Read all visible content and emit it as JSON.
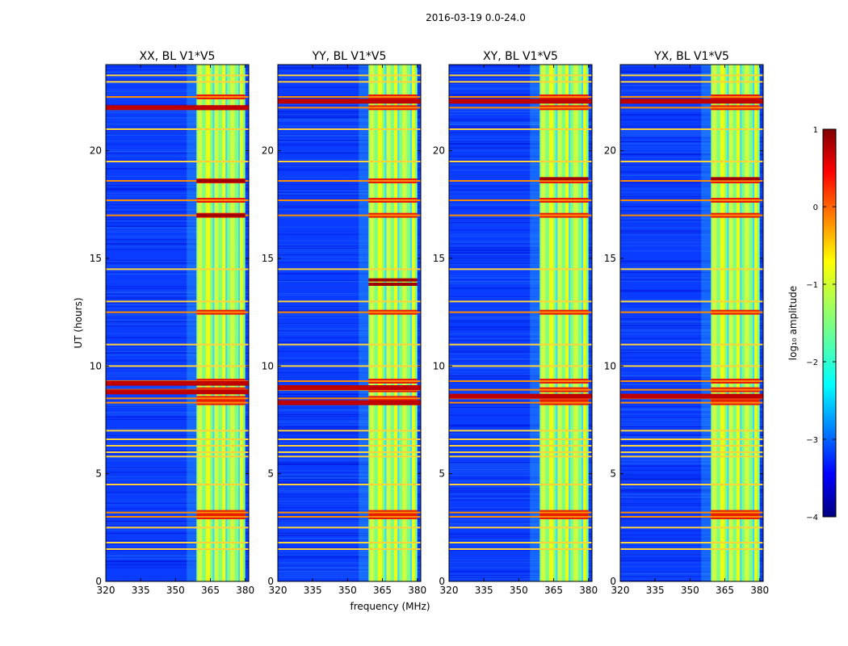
{
  "chart_data": {
    "type": "heatmap",
    "title": "2016-03-19 0.0-24.0",
    "xlabel": "frequency (MHz)",
    "ylabel": "UT (hours)",
    "xlim": [
      320,
      381.5
    ],
    "ylim": [
      0,
      24
    ],
    "xticks": [
      320,
      335,
      350,
      365,
      380
    ],
    "xtick_labels": [
      "320",
      "335",
      "350",
      "365",
      "380"
    ],
    "yticks": [
      0,
      5,
      10,
      15,
      20
    ],
    "ytick_labels": [
      "0",
      "5",
      "10",
      "15",
      "20"
    ],
    "panels": [
      {
        "title": "XX, BL V1*V5",
        "occupied_band_mhz": [
          359,
          380
        ],
        "wide_strong_hours": [
          22.0,
          8.8,
          9.2
        ],
        "extra_strong_hours": [
          18.6,
          17.0
        ]
      },
      {
        "title": "YY, BL V1*V5",
        "occupied_band_mhz": [
          359,
          380
        ],
        "wide_strong_hours": [
          22.3,
          8.3,
          9.0
        ],
        "extra_strong_hours": [
          14.0,
          13.8
        ]
      },
      {
        "title": "XY, BL V1*V5",
        "occupied_band_mhz": [
          359,
          380
        ],
        "wide_strong_hours": [
          22.3,
          8.6
        ],
        "extra_strong_hours": [
          18.7
        ]
      },
      {
        "title": "YX, BL V1*V5",
        "occupied_band_mhz": [
          359,
          380
        ],
        "wide_strong_hours": [
          22.3,
          8.6
        ],
        "extra_strong_hours": [
          18.7
        ]
      }
    ],
    "strong_rfi_hours": [
      22.5,
      22.0,
      18.6,
      17.7,
      17.0,
      12.5,
      9.3,
      8.9,
      8.5,
      8.3,
      3.2,
      3.0
    ],
    "moderate_rfi_hours": [
      23.5,
      23.2,
      21.0,
      19.5,
      14.5,
      13.0,
      11.0,
      10.0,
      7.0,
      6.6,
      6.3,
      6.0,
      5.8,
      4.5,
      2.5,
      1.8,
      1.5
    ],
    "colorbar": {
      "label": "log₁₀ amplitude",
      "range": [
        -4,
        1
      ],
      "ticks": [
        1,
        0,
        -1,
        -2,
        -3,
        -4
      ],
      "tick_labels": [
        "1",
        "0",
        "−1",
        "−2",
        "−3",
        "−4"
      ],
      "colormap": "jet",
      "colors": [
        "#00007f",
        "#0000ff",
        "#007fff",
        "#00ffff",
        "#7fff7f",
        "#ffff00",
        "#ff7f00",
        "#ff0000",
        "#7f0000"
      ]
    }
  }
}
